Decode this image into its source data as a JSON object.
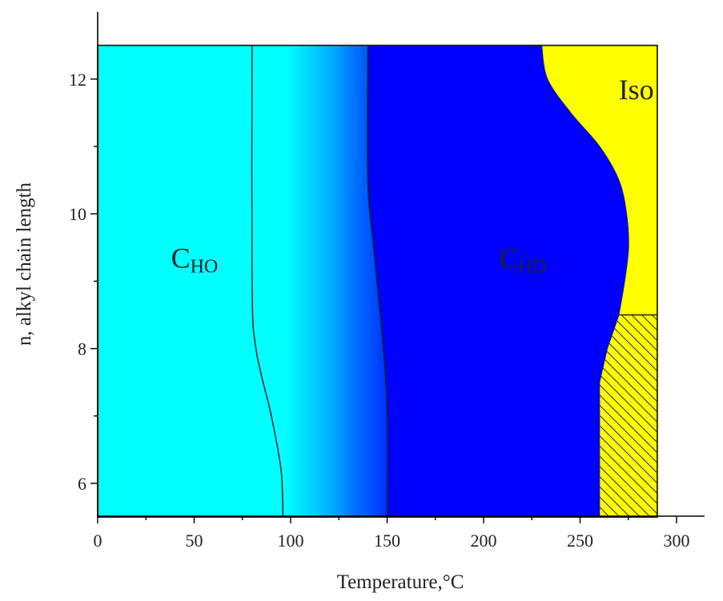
{
  "chart_data": {
    "type": "phase-diagram",
    "xlabel": "Temperature,°C",
    "ylabel": "n, alkyl chain length",
    "xlim": [
      0,
      325
    ],
    "ylim": [
      5.5,
      12.5
    ],
    "x_ticks": [
      0,
      50,
      100,
      150,
      200,
      250,
      300
    ],
    "y_ticks": [
      6,
      8,
      10,
      12
    ],
    "frame_x_max": 290,
    "colors": {
      "cho": "#00ffff",
      "chd": "#0000ff",
      "iso": "#ffff00",
      "hatch": "#222222"
    },
    "labels": [
      {
        "main": "C",
        "sub": "HO",
        "x": 38,
        "y": 9.2
      },
      {
        "main": "C",
        "sub": "HD",
        "x": 208,
        "y": 9.2
      },
      {
        "main": "Iso",
        "sub": "",
        "x": 270,
        "y": 11.7
      }
    ],
    "boundaries": {
      "cho_gradient_left": [
        [
          80,
          12.5
        ],
        [
          80,
          9.0
        ],
        [
          82,
          8.0
        ],
        [
          90,
          7.0
        ],
        [
          95,
          6.2
        ],
        [
          96,
          5.5
        ]
      ],
      "gradient_right": [
        [
          140,
          12.5
        ],
        [
          140,
          10.5
        ],
        [
          143,
          9.5
        ],
        [
          148,
          8.0
        ],
        [
          150,
          7.0
        ],
        [
          150,
          5.5
        ]
      ],
      "chd_iso": [
        [
          230,
          12.5
        ],
        [
          233,
          12.0
        ],
        [
          245,
          11.5
        ],
        [
          260,
          11.0
        ],
        [
          270,
          10.5
        ],
        [
          274,
          10.0
        ],
        [
          275,
          9.5
        ],
        [
          273,
          9.0
        ],
        [
          270,
          8.5
        ]
      ],
      "hatched": [
        [
          270,
          8.5
        ],
        [
          290,
          8.5
        ],
        [
          290,
          5.5
        ],
        [
          260,
          5.5
        ],
        [
          260,
          7.5
        ],
        [
          264,
          8.0
        ]
      ]
    }
  }
}
